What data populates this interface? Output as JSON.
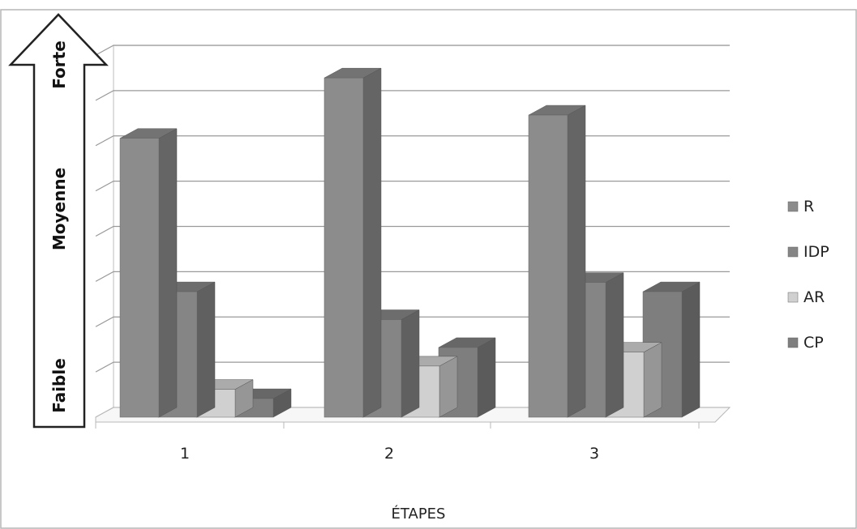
{
  "chart_data": {
    "type": "bar",
    "categories": [
      "1",
      "2",
      "3"
    ],
    "xlabel": "ÉTAPES",
    "ylabel": "",
    "ylim": [
      0,
      8
    ],
    "yaxis_levels": [
      "Faible",
      "Moyenne",
      "Forte"
    ],
    "series": [
      {
        "name": "R",
        "values": [
          6.0,
          7.3,
          6.5
        ],
        "color": "#8c8c8c"
      },
      {
        "name": "IDP",
        "values": [
          2.7,
          2.1,
          2.9
        ],
        "color": "#858585"
      },
      {
        "name": "AR",
        "values": [
          0.6,
          1.1,
          1.4
        ],
        "color": "#d0d0d0"
      },
      {
        "name": "CP",
        "values": [
          0.4,
          1.5,
          2.7
        ],
        "color": "#7e7e7e"
      }
    ],
    "grid": true,
    "legend": "right"
  }
}
